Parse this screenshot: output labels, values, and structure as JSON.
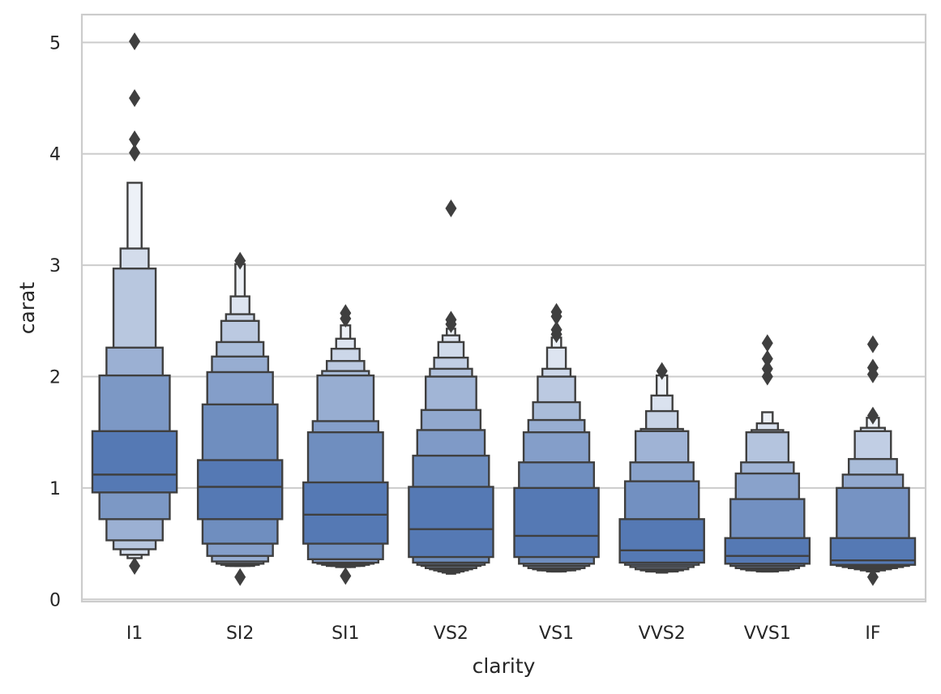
{
  "chart_data": {
    "type": "boxen",
    "xlabel": "clarity",
    "ylabel": "carat",
    "ylim": [
      -0.02,
      5.25
    ],
    "yticks": [
      0,
      1,
      2,
      3,
      4,
      5
    ],
    "grid": "y",
    "categories": [
      "I1",
      "SI2",
      "SI1",
      "VS2",
      "VS1",
      "VVS2",
      "VVS1",
      "IF"
    ],
    "colors": {
      "box_base": "#4c72b0",
      "box_edge": "#3f3f3f",
      "grid": "#cccccc",
      "frame": "#cccccc",
      "median": "#3f3f3f"
    },
    "groups": [
      {
        "name": "I1",
        "median": 1.12,
        "outliers": [
          5.01,
          4.5,
          4.13,
          4.01,
          0.3
        ],
        "boxes": [
          [
            0.96,
            1.51
          ],
          [
            0.72,
            2.01
          ],
          [
            0.53,
            2.26
          ],
          [
            0.45,
            2.97
          ],
          [
            0.4,
            3.15
          ],
          [
            0.37,
            3.74
          ]
        ]
      },
      {
        "name": "SI2",
        "median": 1.01,
        "outliers": [
          3.04,
          0.2
        ],
        "boxes": [
          [
            0.72,
            1.25
          ],
          [
            0.5,
            1.75
          ],
          [
            0.39,
            2.04
          ],
          [
            0.34,
            2.18
          ],
          [
            0.32,
            2.31
          ],
          [
            0.31,
            2.5
          ],
          [
            0.3,
            2.56
          ],
          [
            0.3,
            2.72
          ],
          [
            0.3,
            3.01
          ]
        ]
      },
      {
        "name": "SI1",
        "median": 0.76,
        "outliers": [
          2.57,
          2.52,
          0.21
        ],
        "boxes": [
          [
            0.5,
            1.05
          ],
          [
            0.36,
            1.5
          ],
          [
            0.33,
            1.6
          ],
          [
            0.32,
            2.01
          ],
          [
            0.31,
            2.05
          ],
          [
            0.3,
            2.14
          ],
          [
            0.3,
            2.25
          ],
          [
            0.29,
            2.34
          ],
          [
            0.29,
            2.46
          ]
        ]
      },
      {
        "name": "VS2",
        "median": 0.63,
        "outliers": [
          3.51,
          2.51,
          2.47
        ],
        "boxes": [
          [
            0.38,
            1.01
          ],
          [
            0.33,
            1.29
          ],
          [
            0.31,
            1.52
          ],
          [
            0.3,
            1.7
          ],
          [
            0.28,
            2.0
          ],
          [
            0.27,
            2.07
          ],
          [
            0.26,
            2.17
          ],
          [
            0.25,
            2.31
          ],
          [
            0.24,
            2.37
          ],
          [
            0.23,
            2.43
          ]
        ]
      },
      {
        "name": "VS1",
        "median": 0.57,
        "outliers": [
          2.58,
          2.54,
          2.42,
          2.38
        ],
        "boxes": [
          [
            0.38,
            1.0
          ],
          [
            0.32,
            1.23
          ],
          [
            0.3,
            1.5
          ],
          [
            0.28,
            1.61
          ],
          [
            0.27,
            1.77
          ],
          [
            0.26,
            2.0
          ],
          [
            0.26,
            2.07
          ],
          [
            0.25,
            2.26
          ],
          [
            0.25,
            2.35
          ]
        ]
      },
      {
        "name": "VVS2",
        "median": 0.44,
        "outliers": [
          2.05
        ],
        "boxes": [
          [
            0.33,
            0.72
          ],
          [
            0.31,
            1.06
          ],
          [
            0.29,
            1.23
          ],
          [
            0.27,
            1.51
          ],
          [
            0.26,
            1.53
          ],
          [
            0.25,
            1.69
          ],
          [
            0.25,
            1.83
          ],
          [
            0.24,
            2.01
          ]
        ]
      },
      {
        "name": "VVS1",
        "median": 0.39,
        "outliers": [
          2.3,
          2.16,
          2.07,
          2.0
        ],
        "boxes": [
          [
            0.32,
            0.55
          ],
          [
            0.3,
            0.9
          ],
          [
            0.28,
            1.13
          ],
          [
            0.27,
            1.23
          ],
          [
            0.26,
            1.5
          ],
          [
            0.26,
            1.52
          ],
          [
            0.25,
            1.58
          ],
          [
            0.25,
            1.68
          ]
        ]
      },
      {
        "name": "IF",
        "median": 0.35,
        "outliers": [
          2.29,
          2.08,
          2.02,
          1.65,
          0.2
        ],
        "boxes": [
          [
            0.31,
            0.55
          ],
          [
            0.3,
            1.0
          ],
          [
            0.29,
            1.12
          ],
          [
            0.28,
            1.26
          ],
          [
            0.27,
            1.51
          ],
          [
            0.26,
            1.54
          ],
          [
            0.25,
            1.63
          ]
        ]
      }
    ]
  }
}
